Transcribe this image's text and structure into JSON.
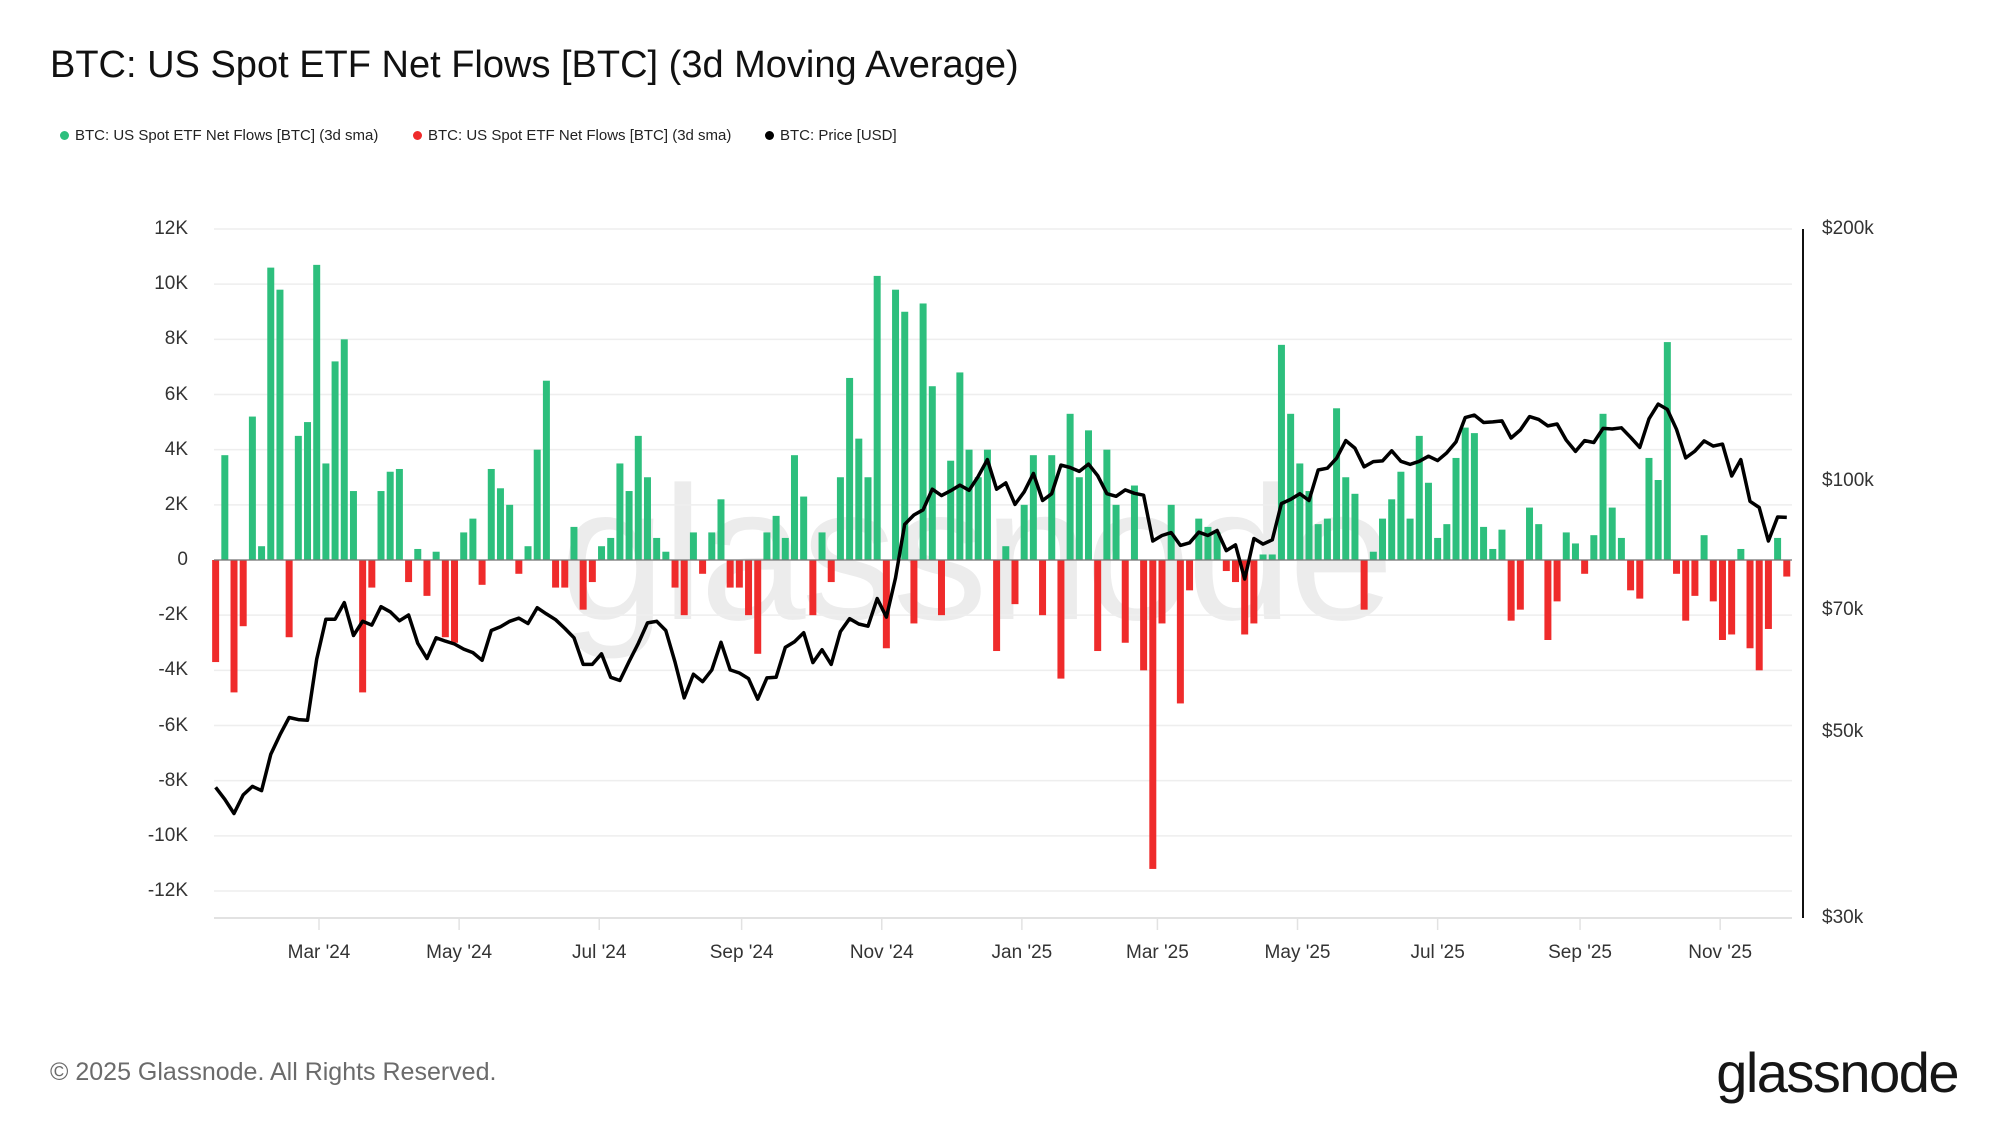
{
  "title": "BTC: US Spot ETF Net Flows [BTC] (3d Moving Average)",
  "legend": [
    {
      "label": "BTC: US Spot ETF Net Flows [BTC] (3d sma)",
      "color": "#2dbf7d"
    },
    {
      "label": "BTC: US Spot ETF Net Flows [BTC] (3d sma)",
      "color": "#ef2b2b"
    },
    {
      "label": "BTC: Price [USD]",
      "color": "#000000"
    }
  ],
  "footer": "© 2025 Glassnode. All Rights Reserved.",
  "logo": "glassnode",
  "watermark": "glassnode",
  "chart_data": {
    "type": "bar",
    "title": "BTC: US Spot ETF Net Flows [BTC] (3d Moving Average)",
    "left_axis": {
      "ylim": [
        -12000,
        12000
      ],
      "ticks": [
        "12K",
        "10K",
        "8K",
        "6K",
        "4K",
        "2K",
        "0",
        "-2K",
        "-4K",
        "-6K",
        "-8K",
        "-10K",
        "-12K"
      ],
      "tick_values": [
        12000,
        10000,
        8000,
        6000,
        4000,
        2000,
        0,
        -2000,
        -4000,
        -6000,
        -8000,
        -10000,
        -12000
      ]
    },
    "right_axis": {
      "scale": "log",
      "ylim": [
        30000,
        200000
      ],
      "ticks": [
        "$200k",
        "$100k",
        "$70k",
        "$50k",
        "$30k"
      ],
      "tick_values": [
        200000,
        100000,
        70000,
        50000,
        30000
      ]
    },
    "x_axis": {
      "ticks": [
        "Mar '24",
        "May '24",
        "Jul '24",
        "Sep '24",
        "Nov '24",
        "Jan '25",
        "Mar '25",
        "May '25",
        "Jul '25",
        "Sep '25",
        "Nov '25"
      ],
      "tick_dates": [
        "2024-03-01",
        "2024-05-01",
        "2024-07-01",
        "2024-09-01",
        "2024-11-01",
        "2025-01-01",
        "2025-03-01",
        "2025-05-01",
        "2025-07-01",
        "2025-09-01",
        "2025-11-01"
      ]
    },
    "grid": true,
    "legend_placement": "top-left",
    "colors": {
      "inflow": "#2dbf7d",
      "outflow": "#ef2b2b",
      "price": "#000000"
    },
    "dates": [
      "2024-01-16",
      "2024-01-20",
      "2024-01-24",
      "2024-01-28",
      "2024-02-01",
      "2024-02-05",
      "2024-02-09",
      "2024-02-13",
      "2024-02-17",
      "2024-02-21",
      "2024-02-25",
      "2024-02-29",
      "2024-03-04",
      "2024-03-08",
      "2024-03-12",
      "2024-03-16",
      "2024-03-20",
      "2024-03-24",
      "2024-03-28",
      "2024-04-01",
      "2024-04-05",
      "2024-04-09",
      "2024-04-13",
      "2024-04-17",
      "2024-04-21",
      "2024-04-25",
      "2024-04-29",
      "2024-05-03",
      "2024-05-07",
      "2024-05-11",
      "2024-05-15",
      "2024-05-19",
      "2024-05-23",
      "2024-05-27",
      "2024-05-31",
      "2024-06-04",
      "2024-06-08",
      "2024-06-12",
      "2024-06-16",
      "2024-06-20",
      "2024-06-24",
      "2024-06-28",
      "2024-07-02",
      "2024-07-06",
      "2024-07-10",
      "2024-07-14",
      "2024-07-18",
      "2024-07-22",
      "2024-07-26",
      "2024-07-30",
      "2024-08-03",
      "2024-08-07",
      "2024-08-11",
      "2024-08-15",
      "2024-08-19",
      "2024-08-23",
      "2024-08-27",
      "2024-08-31",
      "2024-09-04",
      "2024-09-08",
      "2024-09-12",
      "2024-09-16",
      "2024-09-20",
      "2024-09-24",
      "2024-09-28",
      "2024-10-02",
      "2024-10-06",
      "2024-10-10",
      "2024-10-14",
      "2024-10-18",
      "2024-10-22",
      "2024-10-26",
      "2024-10-30",
      "2024-11-03",
      "2024-11-07",
      "2024-11-11",
      "2024-11-15",
      "2024-11-19",
      "2024-11-23",
      "2024-11-27",
      "2024-12-01",
      "2024-12-05",
      "2024-12-09",
      "2024-12-13",
      "2024-12-17",
      "2024-12-21",
      "2024-12-25",
      "2024-12-29",
      "2025-01-02",
      "2025-01-06",
      "2025-01-10",
      "2025-01-14",
      "2025-01-18",
      "2025-01-22",
      "2025-01-26",
      "2025-01-30",
      "2025-02-03",
      "2025-02-07",
      "2025-02-11",
      "2025-02-15",
      "2025-02-19",
      "2025-02-23",
      "2025-02-27",
      "2025-03-03",
      "2025-03-07",
      "2025-03-11",
      "2025-03-15",
      "2025-03-19",
      "2025-03-23",
      "2025-03-27",
      "2025-03-31",
      "2025-04-04",
      "2025-04-08",
      "2025-04-12",
      "2025-04-16",
      "2025-04-20",
      "2025-04-24",
      "2025-04-28",
      "2025-05-02",
      "2025-05-06",
      "2025-05-10",
      "2025-05-14",
      "2025-05-18",
      "2025-05-22",
      "2025-05-26",
      "2025-05-30",
      "2025-06-03",
      "2025-06-07",
      "2025-06-11",
      "2025-06-15",
      "2025-06-19",
      "2025-06-23",
      "2025-06-27",
      "2025-07-01",
      "2025-07-05",
      "2025-07-09",
      "2025-07-13",
      "2025-07-17",
      "2025-07-21",
      "2025-07-25",
      "2025-07-29",
      "2025-08-02",
      "2025-08-06",
      "2025-08-10",
      "2025-08-14",
      "2025-08-18",
      "2025-08-22",
      "2025-08-26",
      "2025-08-30",
      "2025-09-03",
      "2025-09-07",
      "2025-09-11",
      "2025-09-15",
      "2025-09-19",
      "2025-09-23",
      "2025-09-27",
      "2025-10-01",
      "2025-10-05",
      "2025-10-09",
      "2025-10-13",
      "2025-10-17",
      "2025-10-21",
      "2025-10-25",
      "2025-10-29",
      "2025-11-02",
      "2025-11-06",
      "2025-11-10",
      "2025-11-14",
      "2025-11-18",
      "2025-11-22",
      "2025-11-26",
      "2025-11-30"
    ],
    "series": [
      {
        "name": "BTC: US Spot ETF Net Flows [BTC] (3d sma)",
        "axis": "left",
        "type": "bar",
        "values": [
          -3700,
          3800,
          -4800,
          -2400,
          5200,
          500,
          10600,
          9800,
          -2800,
          4500,
          5000,
          10700,
          3500,
          7200,
          8000,
          2500,
          -4800,
          -1000,
          2500,
          3200,
          3300,
          -800,
          400,
          -1300,
          300,
          -2800,
          -3000,
          1000,
          1500,
          -900,
          3300,
          2600,
          2000,
          -500,
          500,
          4000,
          6500,
          -1000,
          -1000,
          1200,
          -1800,
          -800,
          500,
          800,
          3500,
          2500,
          4500,
          3000,
          800,
          300,
          -1000,
          -2000,
          1000,
          -500,
          1000,
          2200,
          -1000,
          -1000,
          -2000,
          -3400,
          1000,
          1600,
          800,
          3800,
          2300,
          -2000,
          1000,
          -800,
          3000,
          6600,
          4400,
          3000,
          10300,
          -3200,
          9800,
          9000,
          -2300,
          9300,
          6300,
          -2000,
          3600,
          6800,
          4000,
          3000,
          4000,
          -3300,
          500,
          -1600,
          2000,
          3800,
          -2000,
          3800,
          -4300,
          5300,
          3000,
          4700,
          -3300,
          4000,
          2000,
          -3000,
          2700,
          -4000,
          -11200,
          -2300,
          2000,
          -5200,
          -1100,
          1500,
          1200,
          1000,
          -400,
          -800,
          -2700,
          -2300,
          200,
          200,
          7800,
          5300,
          3500,
          2500,
          1300,
          1500,
          5500,
          3000,
          2400,
          -1800,
          300,
          1500,
          2200,
          3200,
          1500,
          4500,
          2800,
          800,
          1300,
          3700,
          4800,
          4600,
          1200,
          400,
          1100,
          -2200,
          -1800,
          1900,
          1300,
          -2900,
          -1500,
          1000,
          600,
          -500,
          900,
          5300,
          1900,
          800,
          -1100,
          -1400,
          3700,
          2900,
          7900,
          -500,
          -2200,
          -1300,
          900,
          -1500,
          -2900,
          -2700,
          400,
          -3200,
          -4000,
          -2500,
          800,
          -600
        ]
      },
      {
        "name": "BTC: Price [USD]",
        "axis": "right",
        "type": "line",
        "values": [
          43000,
          41600,
          40000,
          42100,
          43100,
          42600,
          47100,
          49700,
          52100,
          51800,
          51700,
          61200,
          68300,
          68300,
          71500,
          65300,
          67900,
          67200,
          70700,
          69700,
          68000,
          69100,
          63900,
          61300,
          64900,
          64300,
          63800,
          62900,
          62300,
          61000,
          66200,
          66900,
          67900,
          68500,
          67500,
          70500,
          69300,
          68200,
          66600,
          64900,
          60300,
          60300,
          62100,
          58200,
          57700,
          60800,
          63900,
          67600,
          67900,
          66200,
          60700,
          55000,
          58700,
          57500,
          59400,
          64100,
          59400,
          58900,
          58000,
          54800,
          58100,
          58200,
          63200,
          64200,
          65800,
          60600,
          62800,
          60300,
          66000,
          68400,
          67400,
          67000,
          72300,
          68700,
          76500,
          88700,
          91000,
          92300,
          97700,
          96000,
          97300,
          98800,
          97400,
          101200,
          106000,
          97700,
          99400,
          93700,
          97000,
          102000,
          94700,
          96500,
          104400,
          103700,
          102600,
          104700,
          101400,
          96500,
          95800,
          97500,
          96600,
          96100,
          84700,
          86000,
          86700,
          83700,
          84300,
          86800,
          86000,
          87200,
          82500,
          83800,
          76300,
          85300,
          84000,
          85000,
          93900,
          95000,
          96500,
          94700,
          103000,
          103500,
          106400,
          111700,
          109400,
          103900,
          105400,
          105600,
          108600,
          105500,
          104600,
          105500,
          107000,
          105700,
          108000,
          111300,
          119000,
          119800,
          117400,
          117600,
          117900,
          112500,
          115000,
          119300,
          118400,
          116300,
          116900,
          111800,
          108400,
          111700,
          111100,
          115500,
          115300,
          115700,
          112700,
          109600,
          118600,
          123500,
          121700,
          115200,
          106500,
          108500,
          111600,
          110000,
          110600,
          101300,
          106000,
          94500,
          92900,
          84700,
          90500,
          90400
        ]
      }
    ]
  }
}
